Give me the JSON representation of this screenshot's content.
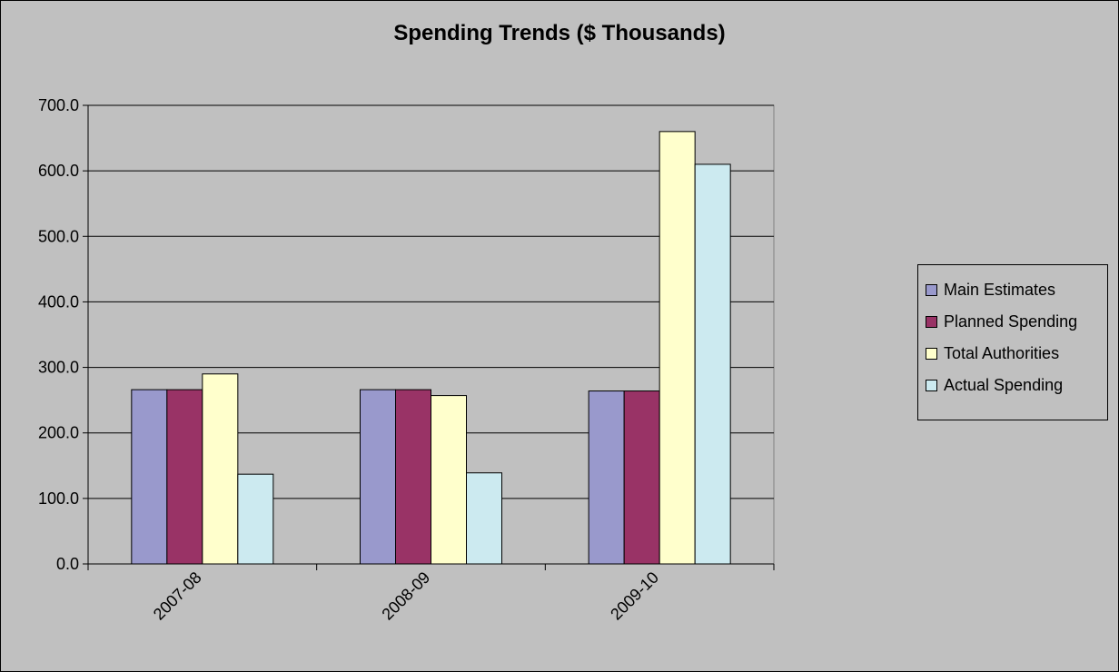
{
  "chart_data": {
    "type": "bar",
    "title": "Spending Trends ($ Thousands)",
    "xlabel": "",
    "ylabel": "",
    "categories": [
      "2007-08",
      "2008-09",
      "2009-10"
    ],
    "series": [
      {
        "name": "Main Estimates",
        "color": "#9999cc",
        "values": [
          266.0,
          266.0,
          264.0
        ]
      },
      {
        "name": "Planned Spending",
        "color": "#993366",
        "values": [
          266.0,
          266.0,
          264.0
        ]
      },
      {
        "name": "Total Authorities",
        "color": "#ffffcc",
        "values": [
          290.0,
          257.0,
          660.0
        ]
      },
      {
        "name": "Actual Spending",
        "color": "#cceaf0",
        "values": [
          137.0,
          139.0,
          610.0
        ]
      }
    ],
    "ylim": [
      0,
      700
    ],
    "yticks": [
      0,
      100,
      200,
      300,
      400,
      500,
      600,
      700
    ],
    "ytick_labels": [
      "0.0",
      "100.0",
      "200.0",
      "300.0",
      "400.0",
      "500.0",
      "600.0",
      "700.0"
    ],
    "grid": true,
    "legend_position": "right",
    "background_color": "#c0c0c0"
  }
}
